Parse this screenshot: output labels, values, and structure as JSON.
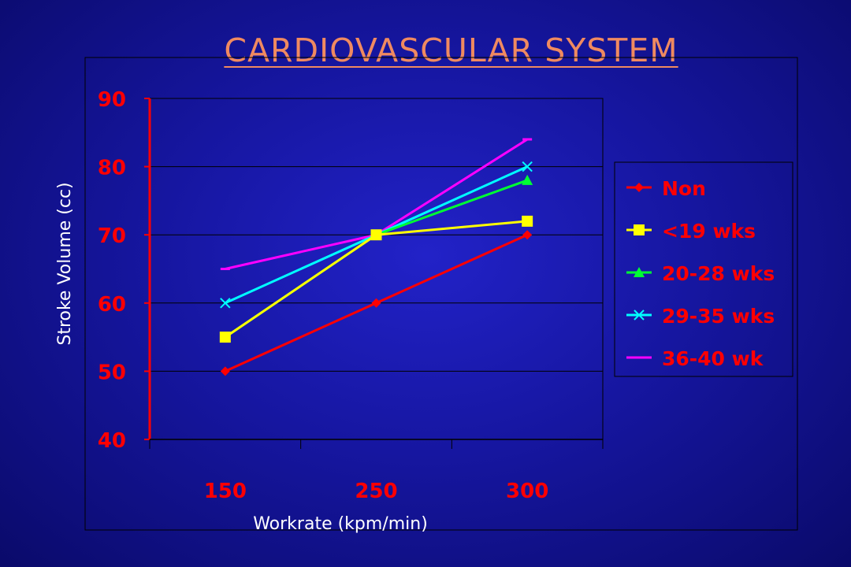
{
  "slide": {
    "title": "CARDIOVASCULAR SYSTEM"
  },
  "colors": {
    "background": "#1a1ab0",
    "axis_text": "#ff0000",
    "axis_label_text": "#ffffff",
    "title": "#f08a60"
  },
  "chart_data": {
    "type": "line",
    "title": "",
    "xlabel": "Workrate (kpm/min)",
    "ylabel": "Stroke Volume (cc)",
    "categories": [
      "150",
      "250",
      "300"
    ],
    "ylim": [
      40,
      90
    ],
    "yticks": [
      40,
      50,
      60,
      70,
      80,
      90
    ],
    "grid": true,
    "legend_position": "right",
    "series": [
      {
        "name": "Non",
        "values": [
          50,
          60,
          70
        ],
        "color": "#ff0000",
        "marker": "diamond"
      },
      {
        "name": "<19 wks",
        "values": [
          55,
          70,
          72
        ],
        "color": "#ffff00",
        "marker": "square"
      },
      {
        "name": "20-28 wks",
        "values": [
          55,
          70,
          78
        ],
        "color": "#00ff33",
        "marker": "triangle"
      },
      {
        "name": "29-35 wks",
        "values": [
          60,
          70,
          80
        ],
        "color": "#00ffff",
        "marker": "x"
      },
      {
        "name": "36-40 wk",
        "values": [
          65,
          70,
          84
        ],
        "color": "#ff00ff",
        "marker": "dash"
      }
    ]
  }
}
